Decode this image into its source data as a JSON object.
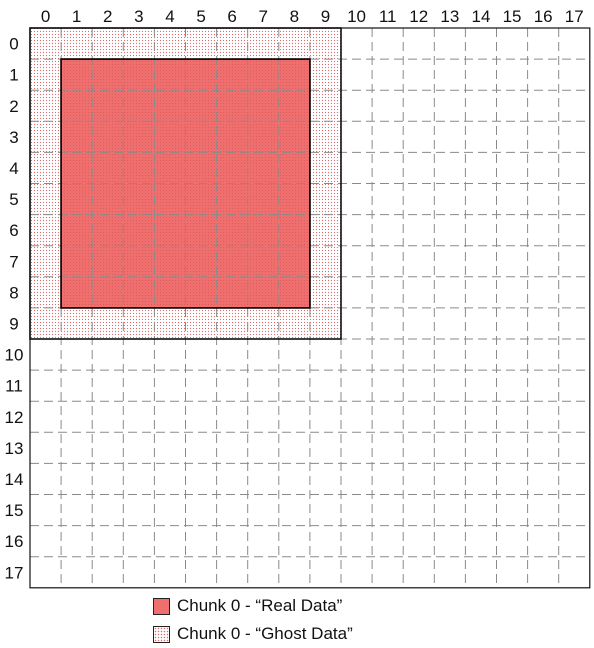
{
  "grid": {
    "columns": [
      "0",
      "1",
      "2",
      "3",
      "4",
      "5",
      "6",
      "7",
      "8",
      "9",
      "10",
      "11",
      "12",
      "13",
      "14",
      "15",
      "16",
      "17"
    ],
    "rows": [
      "0",
      "1",
      "2",
      "3",
      "4",
      "5",
      "6",
      "7",
      "8",
      "9",
      "10",
      "11",
      "12",
      "13",
      "14",
      "15",
      "16",
      "17"
    ]
  },
  "chunk": {
    "ghost_region": {
      "col_start": 0,
      "col_end": 9,
      "row_start": 0,
      "row_end": 9
    },
    "real_region": {
      "col_start": 1,
      "col_end": 8,
      "row_start": 1,
      "row_end": 8
    }
  },
  "colors": {
    "real_fill": "#ef6f6f",
    "ghost_dot": "#d86a6a",
    "grid_line": "#8a8a8a",
    "border": "#111111"
  },
  "legend": {
    "real_label": "Chunk 0 - “Real Data”",
    "ghost_label": "Chunk 0 - “Ghost Data”"
  }
}
